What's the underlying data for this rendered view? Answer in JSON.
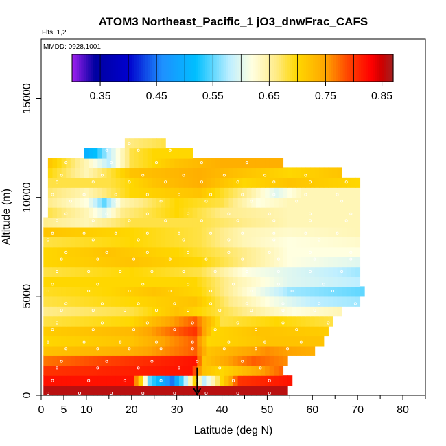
{
  "chart_data": {
    "type": "heatmap",
    "title": "ATOM3 Northeast_Pacific_1 jO3_dnwFrac_CAFS",
    "flights_label": "Flts: 1,2",
    "mmdd_label": "MMDD: 0928,1001",
    "xlabel": "Latitude (deg N)",
    "ylabel": "Altitude (m)",
    "xlim": [
      0,
      85
    ],
    "ylim": [
      0,
      18000
    ],
    "x_ticks": [
      0,
      5,
      10,
      20,
      30,
      40,
      50,
      60,
      70,
      80
    ],
    "x_tick_labels": [
      "0",
      "5",
      "10",
      "20",
      "30",
      "40",
      "50",
      "60",
      "70",
      "80"
    ],
    "y_ticks": [
      0,
      5000,
      10000,
      15000
    ],
    "y_tick_labels": [
      "0",
      "5000",
      "10000",
      "15000"
    ],
    "colorbar": {
      "range": [
        0.3,
        0.87
      ],
      "ticks": [
        0.35,
        0.45,
        0.55,
        0.65,
        0.75,
        0.85
      ],
      "tick_labels": [
        "0.35",
        "0.45",
        "0.55",
        "0.65",
        "0.75",
        "0.85"
      ]
    },
    "flight_track_marker_lat": 34.5,
    "altitude_bins": [
      {
        "alt": 250,
        "lat_min": 0.5,
        "lat_max": 54.5,
        "profile": [
          [
            0.5,
            0.86
          ],
          [
            54.5,
            0.86
          ]
        ]
      },
      {
        "alt": 750,
        "lat_min": 0.5,
        "lat_max": 55.5,
        "profile": [
          [
            0.5,
            0.82
          ],
          [
            20,
            0.82
          ],
          [
            22,
            0.7
          ],
          [
            24,
            0.55
          ],
          [
            29,
            0.45
          ],
          [
            32,
            0.58
          ],
          [
            34,
            0.7
          ],
          [
            36,
            0.58
          ],
          [
            40,
            0.7
          ],
          [
            44,
            0.8
          ],
          [
            55.5,
            0.82
          ]
        ]
      },
      {
        "alt": 1250,
        "lat_min": 0.5,
        "lat_max": 53.5,
        "profile": [
          [
            0.5,
            0.8
          ],
          [
            33,
            0.82
          ],
          [
            36,
            0.72
          ],
          [
            40,
            0.7
          ],
          [
            47,
            0.74
          ],
          [
            53.5,
            0.78
          ]
        ]
      },
      {
        "alt": 1750,
        "lat_min": 0.5,
        "lat_max": 54.5,
        "profile": [
          [
            0.5,
            0.77
          ],
          [
            20,
            0.8
          ],
          [
            34,
            0.82
          ],
          [
            36,
            0.72
          ],
          [
            47,
            0.78
          ],
          [
            54.5,
            0.76
          ]
        ]
      },
      {
        "alt": 2250,
        "lat_min": 0.5,
        "lat_max": 60.5,
        "profile": [
          [
            0.5,
            0.72
          ],
          [
            20,
            0.74
          ],
          [
            34,
            0.78
          ],
          [
            37,
            0.72
          ],
          [
            50,
            0.76
          ],
          [
            60.5,
            0.74
          ]
        ]
      },
      {
        "alt": 2750,
        "lat_min": 0.5,
        "lat_max": 62.5,
        "profile": [
          [
            0.5,
            0.7
          ],
          [
            20,
            0.72
          ],
          [
            34,
            0.78
          ],
          [
            37,
            0.7
          ],
          [
            50,
            0.72
          ],
          [
            62.5,
            0.72
          ]
        ]
      },
      {
        "alt": 3250,
        "lat_min": 0.5,
        "lat_max": 63.5,
        "profile": [
          [
            0.5,
            0.71
          ],
          [
            20,
            0.73
          ],
          [
            34,
            0.8
          ],
          [
            38,
            0.7
          ],
          [
            48,
            0.72
          ],
          [
            63.5,
            0.71
          ]
        ]
      },
      {
        "alt": 3750,
        "lat_min": 0.5,
        "lat_max": 64.5,
        "profile": [
          [
            0.5,
            0.68
          ],
          [
            20,
            0.7
          ],
          [
            34,
            0.78
          ],
          [
            40,
            0.68
          ],
          [
            52,
            0.7
          ],
          [
            64.5,
            0.68
          ]
        ]
      },
      {
        "alt": 4250,
        "lat_min": 0.5,
        "lat_max": 66.5,
        "profile": [
          [
            0.5,
            0.66
          ],
          [
            20,
            0.68
          ],
          [
            30,
            0.72
          ],
          [
            40,
            0.68
          ],
          [
            50,
            0.64
          ],
          [
            56,
            0.62
          ],
          [
            66.5,
            0.64
          ]
        ]
      },
      {
        "alt": 4750,
        "lat_min": 0.5,
        "lat_max": 70.5,
        "profile": [
          [
            0.5,
            0.68
          ],
          [
            20,
            0.7
          ],
          [
            34,
            0.72
          ],
          [
            42,
            0.66
          ],
          [
            50,
            0.62
          ],
          [
            60,
            0.58
          ],
          [
            70.5,
            0.57
          ]
        ]
      },
      {
        "alt": 5250,
        "lat_min": 0.5,
        "lat_max": 71.5,
        "profile": [
          [
            0.5,
            0.69
          ],
          [
            15,
            0.7
          ],
          [
            25,
            0.72
          ],
          [
            35,
            0.7
          ],
          [
            45,
            0.63
          ],
          [
            55,
            0.57
          ],
          [
            71.5,
            0.55
          ]
        ]
      },
      {
        "alt": 5750,
        "lat_min": 0.5,
        "lat_max": 70.5,
        "profile": [
          [
            0.5,
            0.7
          ],
          [
            20,
            0.7
          ],
          [
            34,
            0.7
          ],
          [
            44,
            0.64
          ],
          [
            55,
            0.6
          ],
          [
            70.5,
            0.58
          ]
        ]
      },
      {
        "alt": 6250,
        "lat_min": 0.5,
        "lat_max": 70.5,
        "profile": [
          [
            0.5,
            0.68
          ],
          [
            20,
            0.7
          ],
          [
            35,
            0.68
          ],
          [
            45,
            0.62
          ],
          [
            55,
            0.6
          ],
          [
            70.5,
            0.57
          ]
        ]
      },
      {
        "alt": 6750,
        "lat_min": 0.5,
        "lat_max": 70.5,
        "profile": [
          [
            0.5,
            0.7
          ],
          [
            20,
            0.72
          ],
          [
            35,
            0.7
          ],
          [
            45,
            0.66
          ],
          [
            55,
            0.62
          ],
          [
            70.5,
            0.6
          ]
        ]
      },
      {
        "alt": 7250,
        "lat_min": 0.5,
        "lat_max": 70.5,
        "profile": [
          [
            0.5,
            0.7
          ],
          [
            15,
            0.72
          ],
          [
            30,
            0.7
          ],
          [
            45,
            0.66
          ],
          [
            55,
            0.62
          ],
          [
            70.5,
            0.62
          ]
        ]
      },
      {
        "alt": 7750,
        "lat_min": 0.5,
        "lat_max": 70.5,
        "profile": [
          [
            0.5,
            0.68
          ],
          [
            20,
            0.7
          ],
          [
            35,
            0.68
          ],
          [
            45,
            0.64
          ],
          [
            55,
            0.62
          ],
          [
            70.5,
            0.63
          ]
        ]
      },
      {
        "alt": 8250,
        "lat_min": 0.5,
        "lat_max": 70.5,
        "profile": [
          [
            0.5,
            0.72
          ],
          [
            20,
            0.7
          ],
          [
            35,
            0.68
          ],
          [
            45,
            0.64
          ],
          [
            55,
            0.63
          ],
          [
            70.5,
            0.64
          ]
        ]
      },
      {
        "alt": 8750,
        "lat_min": 0.5,
        "lat_max": 70.5,
        "profile": [
          [
            0.5,
            0.66
          ],
          [
            10,
            0.64
          ],
          [
            20,
            0.68
          ],
          [
            35,
            0.68
          ],
          [
            45,
            0.66
          ],
          [
            55,
            0.64
          ],
          [
            70.5,
            0.64
          ]
        ]
      },
      {
        "alt": 9250,
        "lat_min": 1.5,
        "lat_max": 70.5,
        "profile": [
          [
            1.5,
            0.68
          ],
          [
            10,
            0.64
          ],
          [
            14,
            0.6
          ],
          [
            18,
            0.66
          ],
          [
            30,
            0.7
          ],
          [
            40,
            0.66
          ],
          [
            55,
            0.64
          ],
          [
            70.5,
            0.64
          ]
        ]
      },
      {
        "alt": 9750,
        "lat_min": 1.5,
        "lat_max": 70.5,
        "profile": [
          [
            1.5,
            0.66
          ],
          [
            10,
            0.62
          ],
          [
            14,
            0.55
          ],
          [
            18,
            0.64
          ],
          [
            30,
            0.7
          ],
          [
            40,
            0.68
          ],
          [
            48,
            0.62
          ],
          [
            55,
            0.64
          ],
          [
            70.5,
            0.64
          ]
        ]
      },
      {
        "alt": 10250,
        "lat_min": 1.5,
        "lat_max": 70.5,
        "profile": [
          [
            1.5,
            0.67
          ],
          [
            10,
            0.64
          ],
          [
            20,
            0.7
          ],
          [
            35,
            0.72
          ],
          [
            45,
            0.66
          ],
          [
            52,
            0.6
          ],
          [
            58,
            0.64
          ],
          [
            70.5,
            0.64
          ]
        ]
      },
      {
        "alt": 10750,
        "lat_min": 1.5,
        "lat_max": 70.5,
        "profile": [
          [
            1.5,
            0.68
          ],
          [
            15,
            0.68
          ],
          [
            25,
            0.72
          ],
          [
            35,
            0.74
          ],
          [
            45,
            0.7
          ],
          [
            55,
            0.72
          ],
          [
            70.5,
            0.7
          ]
        ]
      },
      {
        "alt": 11250,
        "lat_min": 1.5,
        "lat_max": 66.5,
        "profile": [
          [
            1.5,
            0.7
          ],
          [
            10,
            0.64
          ],
          [
            20,
            0.72
          ],
          [
            35,
            0.74
          ],
          [
            45,
            0.72
          ],
          [
            55,
            0.7
          ],
          [
            66.5,
            0.72
          ]
        ]
      },
      {
        "alt": 11750,
        "lat_min": 1.5,
        "lat_max": 53.5,
        "profile": [
          [
            1.5,
            0.72
          ],
          [
            10,
            0.64
          ],
          [
            15,
            0.58
          ],
          [
            20,
            0.68
          ],
          [
            30,
            0.72
          ],
          [
            40,
            0.74
          ],
          [
            53.5,
            0.74
          ]
        ]
      },
      {
        "alt": 12250,
        "lat_min": 9.5,
        "lat_max": 33.5,
        "profile": [
          [
            9.5,
            0.5
          ],
          [
            12,
            0.52
          ],
          [
            15,
            0.58
          ],
          [
            20,
            0.68
          ],
          [
            25,
            0.7
          ],
          [
            33.5,
            0.7
          ]
        ]
      },
      {
        "alt": 12750,
        "lat_min": 18.5,
        "lat_max": 27.5,
        "profile": [
          [
            18.5,
            0.66
          ],
          [
            27.5,
            0.68
          ]
        ]
      }
    ]
  }
}
